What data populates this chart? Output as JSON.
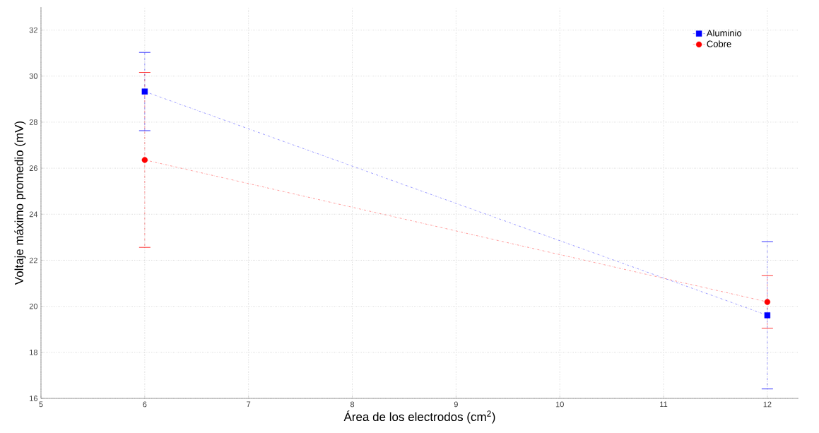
{
  "chart_data": {
    "type": "line",
    "xlabel": "Área de los electrodos (cm$^{2}$)",
    "ylabel": "Voltaje máximo promedio (mV)",
    "x": [
      6,
      12
    ],
    "series": [
      {
        "name": "Aluminio",
        "color": "#0000ff",
        "values": [
          29.33,
          19.61
        ],
        "errors": [
          1.7,
          3.2
        ],
        "marker": "square"
      },
      {
        "name": "Cobre",
        "color": "#ff0000",
        "values": [
          26.36,
          20.19
        ],
        "errors": [
          3.8,
          1.14
        ],
        "marker": "circle"
      }
    ],
    "xlim": [
      5,
      12.3
    ],
    "ylim": [
      16,
      33
    ],
    "xticks": [
      5,
      6,
      7,
      8,
      9,
      10,
      11,
      12
    ],
    "yticks": [
      16,
      18,
      20,
      22,
      24,
      26,
      28,
      30,
      32
    ],
    "grid": true,
    "legend": "top right",
    "line_style": "dashed"
  }
}
